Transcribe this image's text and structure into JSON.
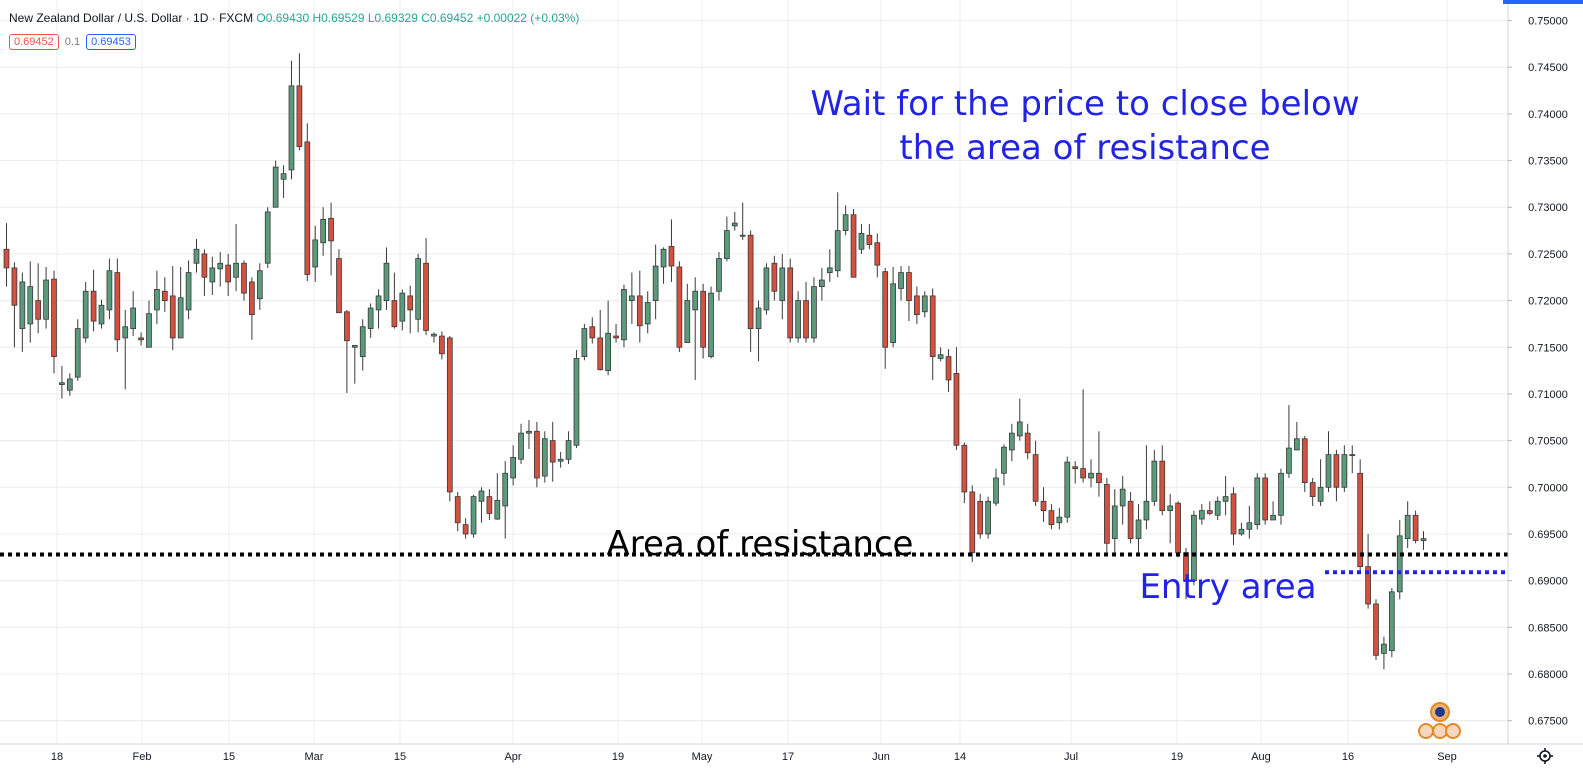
{
  "header": {
    "symbol": "New Zealand Dollar / U.S. Dollar · 1D · FXCM",
    "ohlc": "O0.69430 H0.69529 L0.69329 C0.69452 +0.00022 (+0.03%)"
  },
  "quote": {
    "sell": "0.69452",
    "spread": "0.1",
    "buy": "0.69453"
  },
  "colors": {
    "up": "#5b9a7d",
    "down": "#d4503f",
    "resistance_line": "#000000",
    "entry_line": "#2323e6",
    "annotation_text": "#2323e6",
    "grid": "#ececec"
  },
  "annotations": {
    "wait_line1": "Wait for the price to  close below",
    "wait_line2": "the area of resistance",
    "resistance_label": "Area of resistance",
    "entry_label": "Entry area"
  },
  "chart_data": {
    "type": "candlestick",
    "x_axis_labels": [
      "18",
      "Feb",
      "15",
      "Mar",
      "15",
      "Apr",
      "19",
      "May",
      "17",
      "Jun",
      "14",
      "Jul",
      "19",
      "Aug",
      "16",
      "Sep"
    ],
    "y_axis_labels": [
      "0.75000",
      "0.74500",
      "0.74000",
      "0.73500",
      "0.73000",
      "0.72500",
      "0.72000",
      "0.71500",
      "0.71000",
      "0.70500",
      "0.70000",
      "0.69500",
      "0.69000",
      "0.68500",
      "0.68000",
      "0.67500"
    ],
    "ylim": [
      0.6725,
      0.7522
    ],
    "grid": true,
    "resistance_level": 0.6928,
    "entry_level": 0.6909,
    "candles": [
      [
        0.7255,
        0.7235,
        0.7283,
        0.7215
      ],
      [
        0.7235,
        0.7195,
        0.7241,
        0.715
      ],
      [
        0.717,
        0.722,
        0.723,
        0.7145
      ],
      [
        0.7175,
        0.7215,
        0.7242,
        0.7155
      ],
      [
        0.72,
        0.718,
        0.724,
        0.7165
      ],
      [
        0.718,
        0.7222,
        0.7236,
        0.717
      ],
      [
        0.7223,
        0.714,
        0.7232,
        0.7122
      ],
      [
        0.711,
        0.7112,
        0.713,
        0.7095
      ],
      [
        0.7104,
        0.7116,
        0.7122,
        0.7098
      ],
      [
        0.7118,
        0.717,
        0.718,
        0.7114
      ],
      [
        0.716,
        0.721,
        0.722,
        0.7155
      ],
      [
        0.721,
        0.7178,
        0.7233,
        0.7167
      ],
      [
        0.7175,
        0.7195,
        0.7201,
        0.717
      ],
      [
        0.719,
        0.7232,
        0.7245,
        0.718
      ],
      [
        0.723,
        0.7158,
        0.7245,
        0.7145
      ],
      [
        0.716,
        0.7172,
        0.719,
        0.7105
      ],
      [
        0.717,
        0.7192,
        0.721,
        0.7162
      ],
      [
        0.716,
        0.7158,
        0.7166,
        0.7152
      ],
      [
        0.715,
        0.7186,
        0.72,
        0.715
      ],
      [
        0.719,
        0.7212,
        0.7232,
        0.7175
      ],
      [
        0.721,
        0.72,
        0.7225,
        0.7188
      ],
      [
        0.7205,
        0.716,
        0.7237,
        0.7147
      ],
      [
        0.716,
        0.7203,
        0.7236,
        0.716
      ],
      [
        0.719,
        0.723,
        0.7243,
        0.718
      ],
      [
        0.724,
        0.7255,
        0.7266,
        0.723
      ],
      [
        0.725,
        0.7225,
        0.7255,
        0.7205
      ],
      [
        0.722,
        0.7235,
        0.7247,
        0.7206
      ],
      [
        0.7234,
        0.724,
        0.7252,
        0.7215
      ],
      [
        0.7238,
        0.722,
        0.725,
        0.7205
      ],
      [
        0.7225,
        0.724,
        0.7282,
        0.721
      ],
      [
        0.724,
        0.7208,
        0.7243,
        0.72
      ],
      [
        0.722,
        0.7185,
        0.7225,
        0.7158
      ],
      [
        0.7202,
        0.7232,
        0.724,
        0.719
      ],
      [
        0.724,
        0.7295,
        0.73,
        0.7235
      ],
      [
        0.73,
        0.7343,
        0.735,
        0.73
      ],
      [
        0.733,
        0.7336,
        0.7345,
        0.731
      ],
      [
        0.734,
        0.743,
        0.7457,
        0.733
      ],
      [
        0.743,
        0.7365,
        0.7465,
        0.7361
      ],
      [
        0.737,
        0.7228,
        0.739,
        0.7221
      ],
      [
        0.7236,
        0.7265,
        0.728,
        0.722
      ],
      [
        0.7262,
        0.7287,
        0.73,
        0.7248
      ],
      [
        0.7288,
        0.7264,
        0.7305,
        0.7227
      ],
      [
        0.7245,
        0.7187,
        0.7255,
        0.7187
      ],
      [
        0.7188,
        0.7157,
        0.719,
        0.7101
      ],
      [
        0.715,
        0.7152,
        0.7152,
        0.7111
      ],
      [
        0.714,
        0.7172,
        0.718,
        0.7125
      ],
      [
        0.717,
        0.7192,
        0.7197,
        0.716
      ],
      [
        0.719,
        0.7205,
        0.7212,
        0.717
      ],
      [
        0.72,
        0.724,
        0.7257,
        0.719
      ],
      [
        0.72,
        0.7172,
        0.723,
        0.717
      ],
      [
        0.7178,
        0.7208,
        0.7212,
        0.7168
      ],
      [
        0.7205,
        0.719,
        0.7216,
        0.7165
      ],
      [
        0.718,
        0.7245,
        0.725,
        0.7166
      ],
      [
        0.724,
        0.7168,
        0.7267,
        0.7163
      ],
      [
        0.7162,
        0.7164,
        0.7166,
        0.7155
      ],
      [
        0.7162,
        0.7143,
        0.7167,
        0.7137
      ],
      [
        0.716,
        0.6995,
        0.7162,
        0.6985
      ],
      [
        0.699,
        0.6962,
        0.6995,
        0.6953
      ],
      [
        0.696,
        0.695,
        0.6967,
        0.6945
      ],
      [
        0.695,
        0.699,
        0.6992,
        0.6946
      ],
      [
        0.6985,
        0.6996,
        0.7,
        0.6962
      ],
      [
        0.699,
        0.6972,
        0.6998,
        0.6965
      ],
      [
        0.6966,
        0.6986,
        0.7015,
        0.6965
      ],
      [
        0.698,
        0.7015,
        0.7028,
        0.6945
      ],
      [
        0.701,
        0.7032,
        0.7045,
        0.7002
      ],
      [
        0.703,
        0.7058,
        0.7068,
        0.7025
      ],
      [
        0.7058,
        0.706,
        0.7072,
        0.7041
      ],
      [
        0.706,
        0.701,
        0.707,
        0.7
      ],
      [
        0.7012,
        0.7052,
        0.706,
        0.7005
      ],
      [
        0.705,
        0.7027,
        0.707,
        0.7006
      ],
      [
        0.7028,
        0.703,
        0.7038,
        0.7021
      ],
      [
        0.703,
        0.705,
        0.706,
        0.7025
      ],
      [
        0.7045,
        0.7138,
        0.7147,
        0.7042
      ],
      [
        0.714,
        0.717,
        0.7175,
        0.7136
      ],
      [
        0.7172,
        0.716,
        0.7182,
        0.7154
      ],
      [
        0.716,
        0.7126,
        0.719,
        0.7125
      ],
      [
        0.7125,
        0.7165,
        0.72,
        0.712
      ],
      [
        0.7162,
        0.716,
        0.7175,
        0.7155
      ],
      [
        0.7158,
        0.7212,
        0.7217,
        0.715
      ],
      [
        0.72,
        0.7205,
        0.723,
        0.7175
      ],
      [
        0.7205,
        0.7173,
        0.7232,
        0.7155
      ],
      [
        0.7175,
        0.7198,
        0.721,
        0.7165
      ],
      [
        0.72,
        0.7237,
        0.726,
        0.718
      ],
      [
        0.7236,
        0.7255,
        0.7257,
        0.7218
      ],
      [
        0.7258,
        0.7237,
        0.7287,
        0.722
      ],
      [
        0.7236,
        0.715,
        0.7242,
        0.7145
      ],
      [
        0.7155,
        0.72,
        0.7218,
        0.7155
      ],
      [
        0.719,
        0.721,
        0.7225,
        0.7115
      ],
      [
        0.721,
        0.715,
        0.7218,
        0.7138
      ],
      [
        0.714,
        0.7208,
        0.7215,
        0.7138
      ],
      [
        0.721,
        0.7245,
        0.7252,
        0.72
      ],
      [
        0.7245,
        0.7275,
        0.729,
        0.7242
      ],
      [
        0.728,
        0.7283,
        0.7295,
        0.7275
      ],
      [
        0.727,
        0.727,
        0.7305,
        0.7265
      ],
      [
        0.727,
        0.717,
        0.7275,
        0.7145
      ],
      [
        0.717,
        0.7192,
        0.72,
        0.7135
      ],
      [
        0.719,
        0.7235,
        0.724,
        0.7185
      ],
      [
        0.724,
        0.721,
        0.7248,
        0.72
      ],
      [
        0.72,
        0.7235,
        0.725,
        0.718
      ],
      [
        0.7235,
        0.716,
        0.7245,
        0.7155
      ],
      [
        0.716,
        0.72,
        0.721,
        0.7155
      ],
      [
        0.72,
        0.716,
        0.722,
        0.7155
      ],
      [
        0.716,
        0.7215,
        0.7225,
        0.7155
      ],
      [
        0.7215,
        0.7222,
        0.7235,
        0.72
      ],
      [
        0.723,
        0.7235,
        0.7255,
        0.722
      ],
      [
        0.7232,
        0.7275,
        0.7316,
        0.7225
      ],
      [
        0.7275,
        0.7292,
        0.7302,
        0.727
      ],
      [
        0.7292,
        0.7225,
        0.7298,
        0.7225
      ],
      [
        0.7255,
        0.7272,
        0.7282,
        0.725
      ],
      [
        0.727,
        0.726,
        0.7282,
        0.7255
      ],
      [
        0.7262,
        0.7238,
        0.7272,
        0.7225
      ],
      [
        0.7231,
        0.715,
        0.7235,
        0.7127
      ],
      [
        0.7155,
        0.7218,
        0.7236,
        0.715
      ],
      [
        0.7213,
        0.723,
        0.7237,
        0.72
      ],
      [
        0.723,
        0.72,
        0.7237,
        0.7178
      ],
      [
        0.7205,
        0.7185,
        0.7215,
        0.7175
      ],
      [
        0.7188,
        0.7205,
        0.721,
        0.7182
      ],
      [
        0.7205,
        0.714,
        0.7213,
        0.7115
      ],
      [
        0.7138,
        0.7142,
        0.715,
        0.7135
      ],
      [
        0.714,
        0.7115,
        0.7148,
        0.7102
      ],
      [
        0.7122,
        0.7045,
        0.715,
        0.704
      ],
      [
        0.7045,
        0.6995,
        0.7048,
        0.6983
      ],
      [
        0.6995,
        0.693,
        0.7002,
        0.692
      ],
      [
        0.6985,
        0.695,
        0.6993,
        0.6945
      ],
      [
        0.695,
        0.6985,
        0.699,
        0.6945
      ],
      [
        0.6983,
        0.701,
        0.702,
        0.698
      ],
      [
        0.7015,
        0.7043,
        0.7046,
        0.7002
      ],
      [
        0.704,
        0.7058,
        0.7068,
        0.7028
      ],
      [
        0.7055,
        0.707,
        0.7095,
        0.705
      ],
      [
        0.7058,
        0.7037,
        0.7068,
        0.703
      ],
      [
        0.7035,
        0.6985,
        0.705,
        0.698
      ],
      [
        0.6985,
        0.6975,
        0.7,
        0.6963
      ],
      [
        0.6975,
        0.696,
        0.6982,
        0.6955
      ],
      [
        0.6962,
        0.6968,
        0.6978,
        0.6955
      ],
      [
        0.6968,
        0.7027,
        0.7033,
        0.6962
      ],
      [
        0.7022,
        0.702,
        0.7028,
        0.7004
      ],
      [
        0.702,
        0.701,
        0.7105,
        0.7005
      ],
      [
        0.701,
        0.7015,
        0.703,
        0.7
      ],
      [
        0.7015,
        0.7005,
        0.706,
        0.699
      ],
      [
        0.7003,
        0.694,
        0.701,
        0.693
      ],
      [
        0.6945,
        0.698,
        0.6998,
        0.693
      ],
      [
        0.698,
        0.6998,
        0.7012,
        0.696
      ],
      [
        0.6985,
        0.6945,
        0.6995,
        0.694
      ],
      [
        0.6945,
        0.6965,
        0.6982,
        0.693
      ],
      [
        0.6965,
        0.6985,
        0.7045,
        0.6955
      ],
      [
        0.6985,
        0.7028,
        0.704,
        0.698
      ],
      [
        0.7028,
        0.6975,
        0.7045,
        0.697
      ],
      [
        0.6975,
        0.698,
        0.6993,
        0.694
      ],
      [
        0.6983,
        0.693,
        0.6985,
        0.6925
      ],
      [
        0.693,
        0.69,
        0.6935,
        0.688
      ],
      [
        0.69,
        0.697,
        0.6975,
        0.6895
      ],
      [
        0.6966,
        0.6975,
        0.6982,
        0.696
      ],
      [
        0.6975,
        0.6972,
        0.6985,
        0.697
      ],
      [
        0.697,
        0.6985,
        0.699,
        0.6965
      ],
      [
        0.6985,
        0.699,
        0.7012,
        0.697
      ],
      [
        0.6993,
        0.695,
        0.7,
        0.6938
      ],
      [
        0.695,
        0.6955,
        0.6962,
        0.6948
      ],
      [
        0.6955,
        0.6962,
        0.698,
        0.6945
      ],
      [
        0.696,
        0.701,
        0.7015,
        0.6955
      ],
      [
        0.701,
        0.6965,
        0.7015,
        0.696
      ],
      [
        0.6965,
        0.697,
        0.6985,
        0.6965
      ],
      [
        0.697,
        0.7015,
        0.702,
        0.696
      ],
      [
        0.7015,
        0.7042,
        0.7088,
        0.701
      ],
      [
        0.704,
        0.7052,
        0.707,
        0.704
      ],
      [
        0.7052,
        0.7005,
        0.7055,
        0.6995
      ],
      [
        0.7005,
        0.699,
        0.701,
        0.698
      ],
      [
        0.6985,
        0.7,
        0.703,
        0.698
      ],
      [
        0.7,
        0.7035,
        0.706,
        0.6995
      ],
      [
        0.7035,
        0.7,
        0.704,
        0.6985
      ],
      [
        0.7,
        0.7035,
        0.7045,
        0.6995
      ],
      [
        0.7035,
        0.7035,
        0.7045,
        0.7015
      ],
      [
        0.7015,
        0.6915,
        0.703,
        0.691
      ],
      [
        0.6915,
        0.6875,
        0.695,
        0.687
      ],
      [
        0.6875,
        0.682,
        0.688,
        0.6815
      ],
      [
        0.6822,
        0.6832,
        0.684,
        0.6805
      ],
      [
        0.6825,
        0.6888,
        0.6892,
        0.6818
      ],
      [
        0.6888,
        0.6948,
        0.6965,
        0.688
      ],
      [
        0.6945,
        0.697,
        0.6985,
        0.6935
      ],
      [
        0.697,
        0.6943,
        0.6975,
        0.694
      ],
      [
        0.6943,
        0.6945,
        0.6953,
        0.6933
      ]
    ]
  }
}
